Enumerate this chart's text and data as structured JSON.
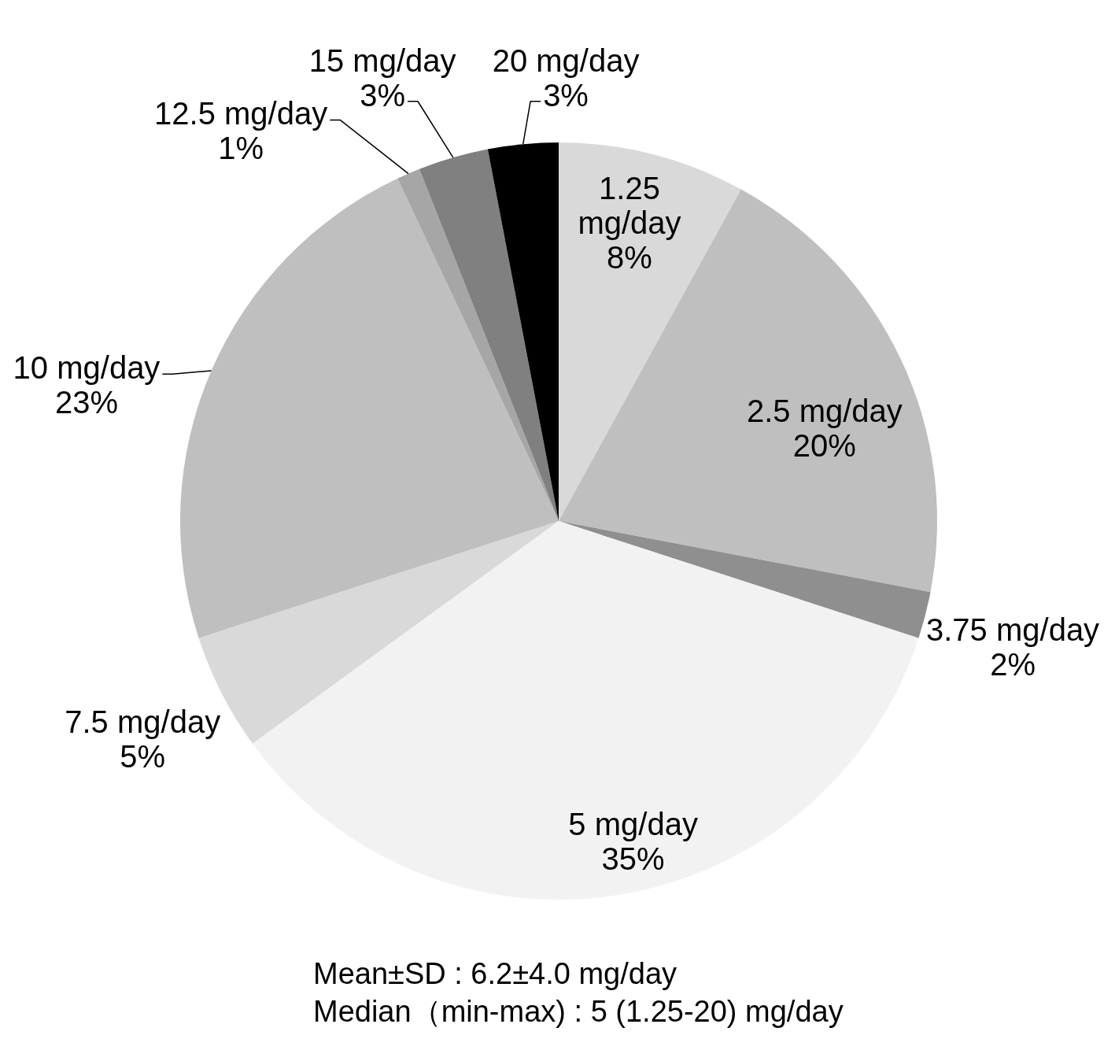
{
  "chart_data": {
    "type": "pie",
    "categories": [
      "1.25 mg/day",
      "2.5 mg/day",
      "3.75 mg/day",
      "5 mg/day",
      "7.5 mg/day",
      "10 mg/day",
      "12.5 mg/day",
      "15 mg/day",
      "20 mg/day"
    ],
    "values": [
      8,
      20,
      2,
      35,
      5,
      23,
      1,
      3,
      3
    ],
    "colors": [
      "#d9d9d9",
      "#bfbfbf",
      "#8f8f8f",
      "#f2f2f2",
      "#d9d9d9",
      "#bfbfbf",
      "#a6a6a6",
      "#808080",
      "#000000"
    ],
    "value_labels": [
      "8%",
      "20%",
      "2%",
      "35%",
      "5%",
      "23%",
      "1%",
      "3%",
      "3%"
    ],
    "annotations": [
      "Mean±SD : 6.2±4.0 mg/day",
      "Median（min-max) : 5 (1.25-20) mg/day"
    ]
  }
}
